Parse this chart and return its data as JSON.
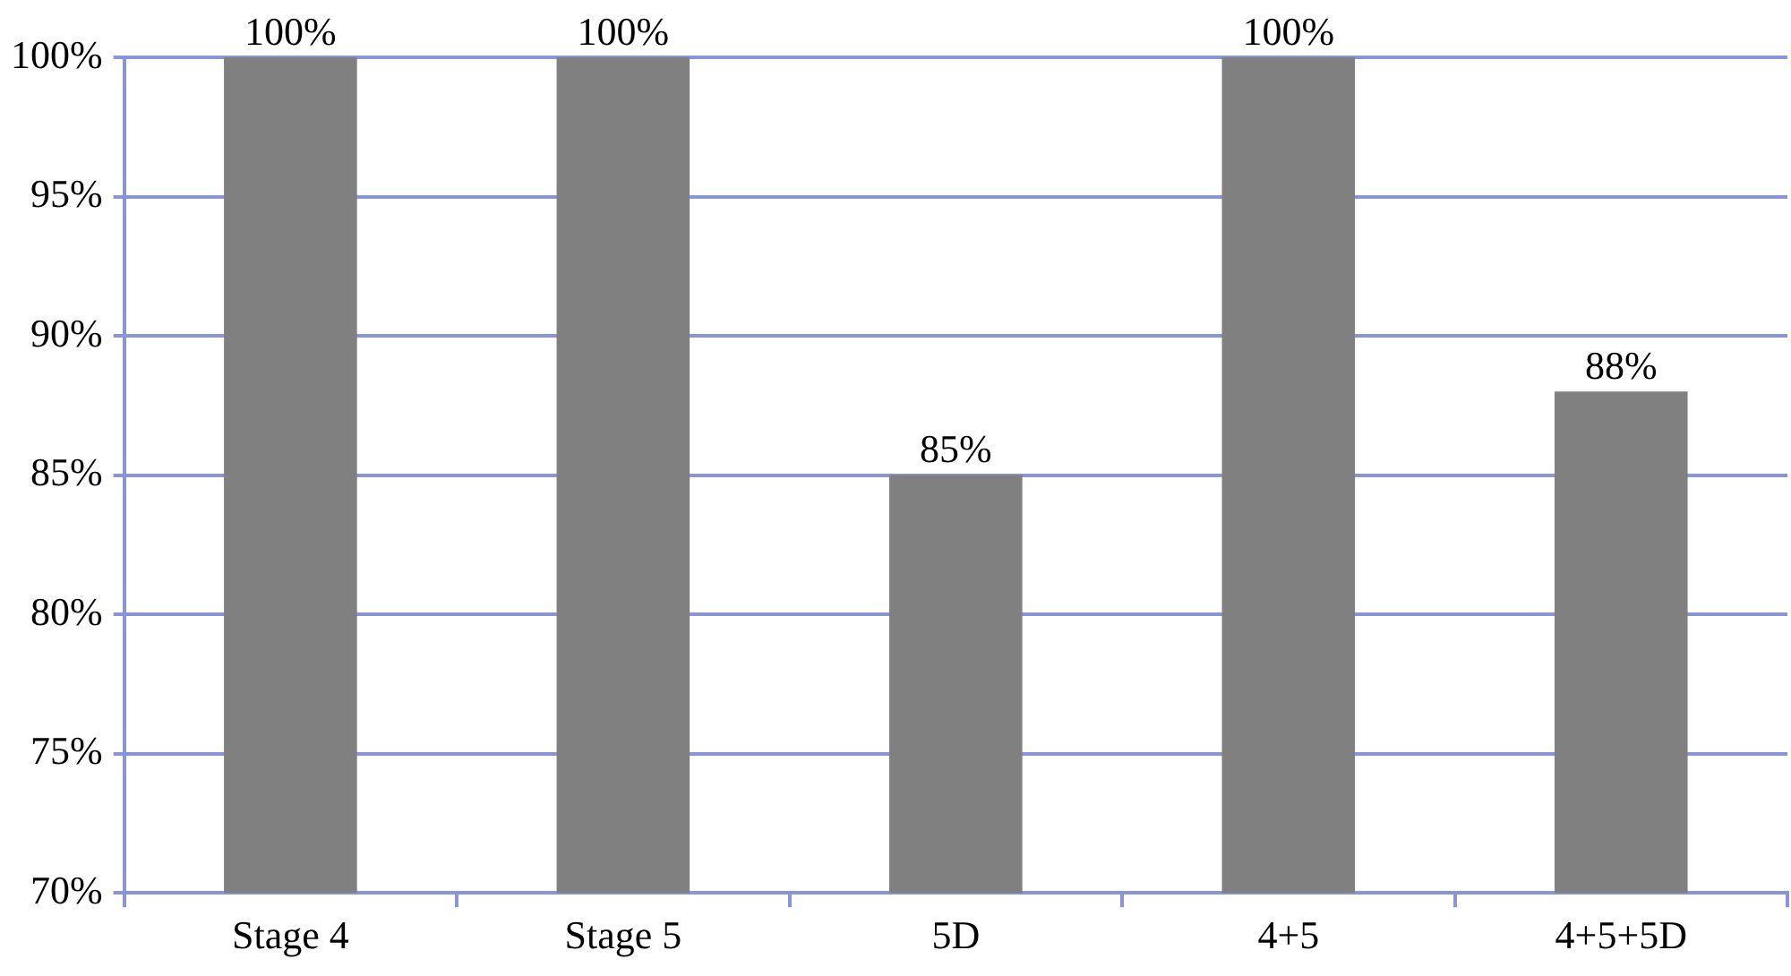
{
  "chart_data": {
    "type": "bar",
    "categories": [
      "Stage 4",
      "Stage 5",
      "5D",
      "4+5",
      "4+5+5D"
    ],
    "values": [
      100,
      100,
      85,
      100,
      88
    ],
    "color": "#808080",
    "ylim": [
      70,
      100
    ],
    "yticks": [
      {
        "value": 70,
        "label": "70%"
      },
      {
        "value": 75,
        "label": "75%"
      },
      {
        "value": 80,
        "label": "80%"
      },
      {
        "value": 85,
        "label": "85%"
      },
      {
        "value": 90,
        "label": "90%"
      },
      {
        "value": 95,
        "label": "95%"
      },
      {
        "value": 100,
        "label": "100%"
      }
    ],
    "value_labels": [
      "100%",
      "100%",
      "85%",
      "100%",
      "88%"
    ],
    "grid": "y",
    "legend": false
  }
}
